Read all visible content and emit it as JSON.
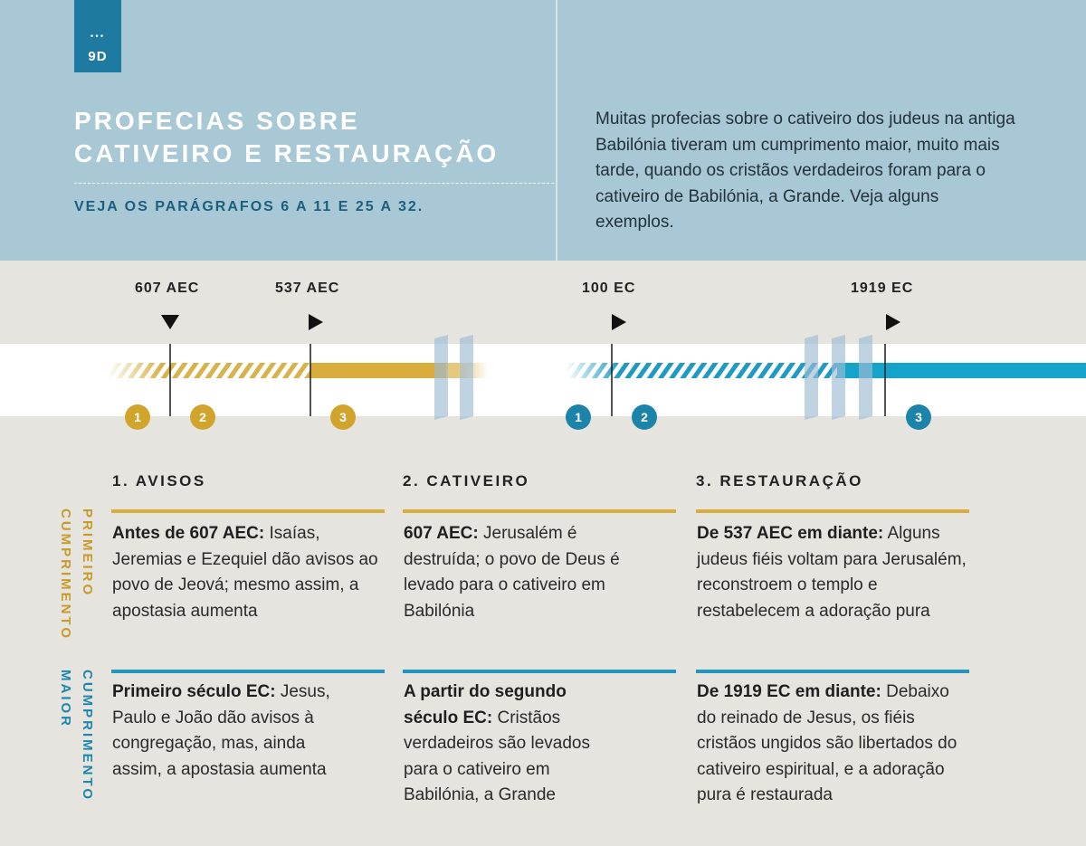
{
  "header": {
    "tab_dots": "•••",
    "tab_code": "9D",
    "title_line1": "PROFECIAS SOBRE",
    "title_line2": "CATIVEIRO E RESTAURAÇÃO",
    "subtitle": "VEJA OS PARÁGRAFOS 6 A 11 E 25 A 32.",
    "intro": "Muitas profecias sobre o cativeiro dos judeus na antiga Babilónia tiveram um cumprimento maior, muito mais tarde, quando os cristãos verdadeiros foram para o cativeiro de Babilónia, a Grande. Veja alguns exemplos."
  },
  "timeline": {
    "first": {
      "dates": [
        "607 AEC",
        "537 AEC"
      ],
      "badges": [
        "1",
        "2",
        "3"
      ],
      "color": "#d1a42b"
    },
    "greater": {
      "dates": [
        "100 EC",
        "1919 EC"
      ],
      "badges": [
        "1",
        "2",
        "3"
      ],
      "color": "#1b84a8"
    }
  },
  "columns": [
    "1. AVISOS",
    "2. CATIVEIRO",
    "3. RESTAURAÇÃO"
  ],
  "rows": [
    {
      "label_line1": "PRIMEIRO",
      "label_line2": "CUMPRIMENTO",
      "color": "#c79a2a",
      "cells": [
        {
          "bold": "Antes de 607 AEC:",
          "text": " Isaías, Jeremias e Ezequiel dão avisos ao povo de Jeová; mesmo assim, a apostasia aumenta"
        },
        {
          "bold": "607 AEC:",
          "text": " Jerusalém é destruída; o povo de Deus é levado para o cativeiro em Babilónia"
        },
        {
          "bold": "De 537 AEC em diante:",
          "text": " Alguns judeus fiéis voltam para Jerusalém, reconstroem o templo e restabelecem a adoração pura"
        }
      ]
    },
    {
      "label_line1": "CUMPRIMENTO",
      "label_line2": "MAIOR",
      "color": "#1e86ad",
      "cells": [
        {
          "bold": "Primeiro século EC:",
          "text": " Jesus, Paulo e João dão avisos à congregação, mas, ainda assim, a apostasia aumenta"
        },
        {
          "bold": "A partir do segundo século EC:",
          "text": " Cristãos verdadeiros são levados para o cativeiro em Babilónia, a Grande"
        },
        {
          "bold": "De 1919 EC em diante:",
          "text": " Debaixo do reinado de Jesus, os fiéis cristãos ungidos são libertados do cativeiro espiritual, e a adoração pura é restaurada"
        }
      ]
    }
  ]
}
